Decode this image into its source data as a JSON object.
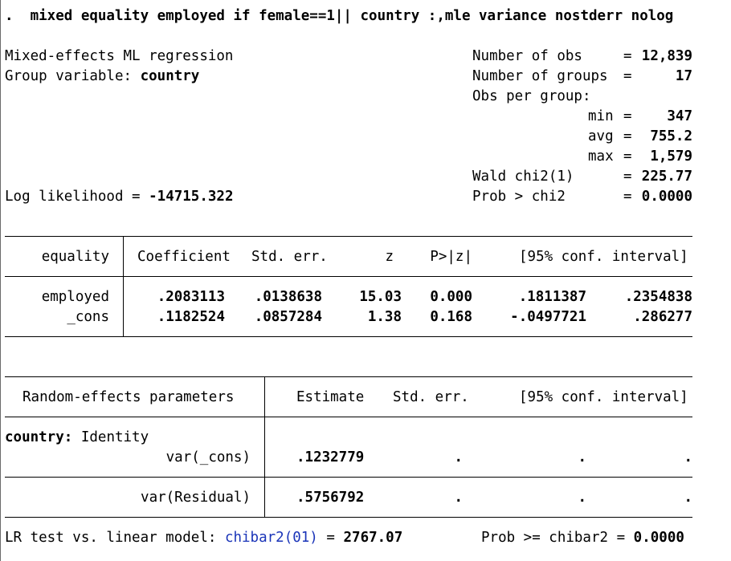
{
  "command": ".  mixed equality employed if female==1|| country :,mle variance nostderr nolog",
  "header": {
    "model_title": "Mixed-effects ML regression",
    "group_variable_label": "Group variable:",
    "group_variable": "country",
    "log_likelihood_label": "Log likelihood =",
    "log_likelihood": "-14715.322",
    "stats": [
      {
        "label": "Number of obs",
        "value": "12,839"
      },
      {
        "label": "Number of groups",
        "value": "17"
      },
      {
        "label": "Obs per group:",
        "value": ""
      },
      {
        "label": "min",
        "value": "347"
      },
      {
        "label": "avg",
        "value": "755.2"
      },
      {
        "label": "max",
        "value": "1,579"
      },
      {
        "label": "Wald chi2(1)",
        "value": "225.77"
      },
      {
        "label": "Prob > chi2",
        "value": "0.0000"
      }
    ]
  },
  "fixed_effects": {
    "depvar": "equality",
    "columns": [
      "Coefficient",
      "Std. err.",
      "z",
      "P>|z|",
      "[95% conf. interval]"
    ],
    "rows": [
      {
        "name": "employed",
        "coef": ".2083113",
        "se": ".0138638",
        "z": "15.03",
        "p": "0.000",
        "ci_low": ".1811387",
        "ci_high": ".2354838"
      },
      {
        "name": "_cons",
        "coef": ".1182524",
        "se": ".0857284",
        "z": "1.38",
        "p": "0.168",
        "ci_low": "-.0497721",
        "ci_high": ".286277"
      }
    ]
  },
  "random_effects": {
    "header": "Random-effects parameters",
    "columns": [
      "Estimate",
      "Std. err.",
      "[95% conf. interval]"
    ],
    "group_label": "country:",
    "group_structure": "Identity",
    "rows": [
      {
        "name": "var(_cons)",
        "estimate": ".1232779",
        "se": ".",
        "ci_low": ".",
        "ci_high": "."
      },
      {
        "name": "var(Residual)",
        "estimate": ".5756792",
        "se": ".",
        "ci_low": ".",
        "ci_high": "."
      }
    ]
  },
  "lr_test": {
    "label": "LR test vs. linear model:",
    "stat_label": "chibar2(01)",
    "equals": "=",
    "stat_value": "2767.07",
    "prob_label": "Prob >= chibar2 =",
    "prob_value": "0.0000"
  }
}
